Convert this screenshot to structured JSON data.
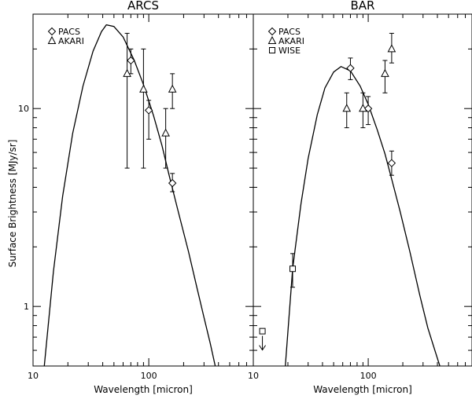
{
  "ylabel": "Surface Brightness [MJy/sr]",
  "chart_data": [
    {
      "type": "scatter",
      "title": "ARCS",
      "xlabel": "Wavelength [micron]",
      "ylabel": "Surface Brightness [MJy/sr]",
      "xscale": "log",
      "yscale": "log",
      "xlim": [
        10,
        800
      ],
      "ylim": [
        0.5,
        30
      ],
      "xticks": [
        {
          "value": 10,
          "label": "10"
        },
        {
          "value": 100,
          "label": "100"
        }
      ],
      "yticks": [
        {
          "value": 1,
          "label": "1"
        },
        {
          "value": 10,
          "label": "10"
        }
      ],
      "legend_position": "top-left",
      "legend": [
        {
          "marker": "diamond",
          "label": "PACS"
        },
        {
          "marker": "triangle",
          "label": "AKARI"
        }
      ],
      "series": [
        {
          "name": "PACS",
          "marker": "diamond",
          "points": [
            {
              "x": 70,
              "y": 17.5,
              "ylow": 15,
              "yhigh": 20
            },
            {
              "x": 100,
              "y": 9.8,
              "ylow": 7,
              "yhigh": 11
            },
            {
              "x": 160,
              "y": 4.2,
              "ylow": 3.8,
              "yhigh": 4.7
            }
          ]
        },
        {
          "name": "AKARI",
          "marker": "triangle",
          "points": [
            {
              "x": 65,
              "y": 15,
              "ylow": 5,
              "yhigh": 24
            },
            {
              "x": 90,
              "y": 12.5,
              "ylow": 5,
              "yhigh": 20
            },
            {
              "x": 140,
              "y": 7.5,
              "ylow": 5,
              "yhigh": 10
            },
            {
              "x": 160,
              "y": 12.5,
              "ylow": 10,
              "yhigh": 15
            }
          ]
        }
      ],
      "model_curve": {
        "peak_x": 43,
        "peak_y": 26.5,
        "points": [
          [
            12.5,
            0.5
          ],
          [
            15,
            1.5
          ],
          [
            18,
            3.6
          ],
          [
            22,
            7.5
          ],
          [
            27,
            13
          ],
          [
            33,
            19.5
          ],
          [
            39,
            24.5
          ],
          [
            43,
            26.5
          ],
          [
            50,
            26
          ],
          [
            60,
            23
          ],
          [
            75,
            17.5
          ],
          [
            90,
            13.2
          ],
          [
            110,
            9.2
          ],
          [
            130,
            6.5
          ],
          [
            150,
            4.6
          ],
          [
            180,
            3.0
          ],
          [
            220,
            1.9
          ],
          [
            260,
            1.25
          ],
          [
            300,
            0.88
          ],
          [
            340,
            0.65
          ],
          [
            375,
            0.5
          ]
        ]
      }
    },
    {
      "type": "scatter",
      "title": "BAR",
      "xlabel": "Wavelength [micron]",
      "xscale": "log",
      "yscale": "log",
      "xlim": [
        10,
        800
      ],
      "ylim": [
        0.5,
        30
      ],
      "xticks": [
        {
          "value": 10,
          "label": "10"
        },
        {
          "value": 100,
          "label": "100"
        }
      ],
      "yticks": [],
      "legend_position": "top-left",
      "legend": [
        {
          "marker": "diamond",
          "label": "PACS"
        },
        {
          "marker": "triangle",
          "label": "AKARI"
        },
        {
          "marker": "square",
          "label": "WISE"
        }
      ],
      "series": [
        {
          "name": "PACS",
          "marker": "diamond",
          "points": [
            {
              "x": 70,
              "y": 16,
              "ylow": 14,
              "yhigh": 18
            },
            {
              "x": 100,
              "y": 10,
              "ylow": 8.3,
              "yhigh": 11.5
            },
            {
              "x": 160,
              "y": 5.3,
              "ylow": 4.6,
              "yhigh": 6.1
            }
          ]
        },
        {
          "name": "AKARI",
          "marker": "triangle",
          "points": [
            {
              "x": 65,
              "y": 10,
              "ylow": 8,
              "yhigh": 12
            },
            {
              "x": 90,
              "y": 10,
              "ylow": 8,
              "yhigh": 12
            },
            {
              "x": 140,
              "y": 15,
              "ylow": 12,
              "yhigh": 17.5
            },
            {
              "x": 160,
              "y": 20,
              "ylow": 17,
              "yhigh": 24
            }
          ]
        },
        {
          "name": "WISE",
          "marker": "square",
          "points": [
            {
              "x": 22,
              "y": 1.55,
              "ylow": 1.25,
              "yhigh": 1.85
            },
            {
              "x": 12,
              "y": 0.75,
              "upper_limit": true
            }
          ]
        }
      ],
      "model_curve": {
        "peak_x": 58,
        "peak_y": 16.3,
        "points": [
          [
            19,
            0.5
          ],
          [
            22,
            1.55
          ],
          [
            26,
            3.3
          ],
          [
            30,
            5.6
          ],
          [
            36,
            9.3
          ],
          [
            42,
            12.7
          ],
          [
            50,
            15.3
          ],
          [
            58,
            16.3
          ],
          [
            70,
            15.5
          ],
          [
            85,
            13
          ],
          [
            100,
            10.5
          ],
          [
            120,
            7.8
          ],
          [
            140,
            5.9
          ],
          [
            160,
            4.4
          ],
          [
            190,
            3.0
          ],
          [
            230,
            1.9
          ],
          [
            280,
            1.15
          ],
          [
            330,
            0.78
          ],
          [
            380,
            0.6
          ],
          [
            420,
            0.5
          ]
        ]
      }
    }
  ]
}
